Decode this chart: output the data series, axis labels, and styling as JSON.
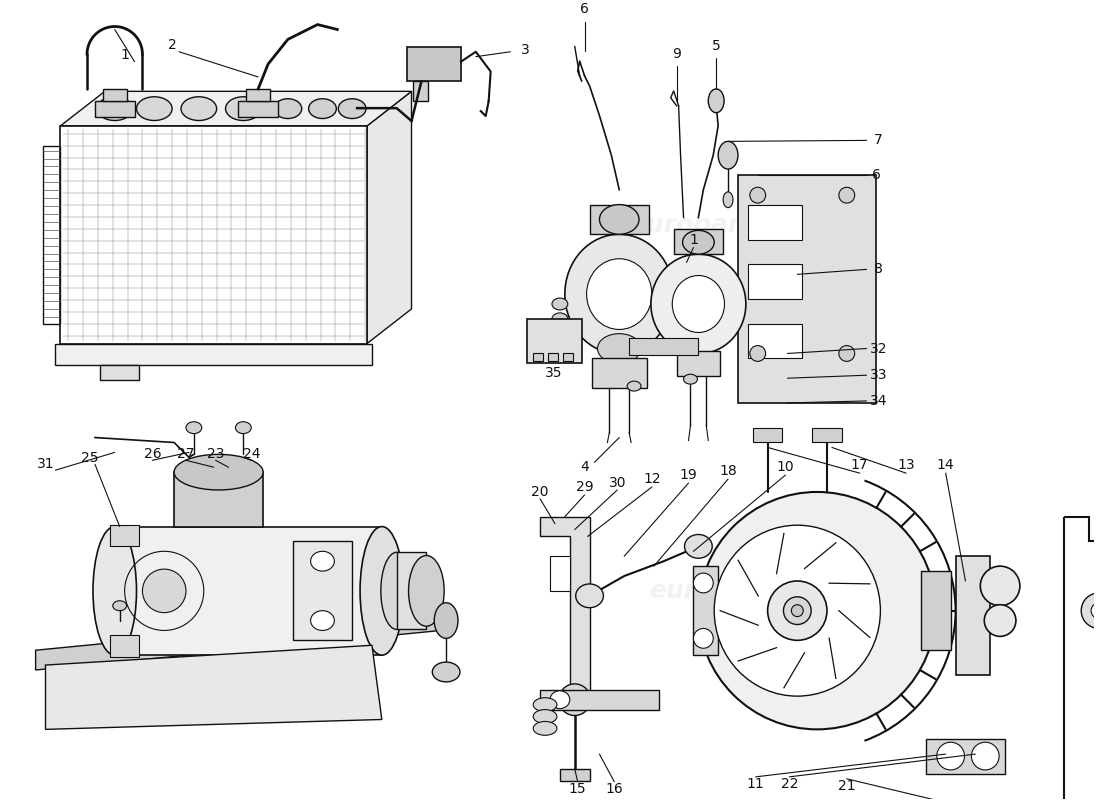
{
  "fig_width": 11.0,
  "fig_height": 8.0,
  "dpi": 100,
  "bg": "#ffffff",
  "lc": "#111111",
  "watermark": "europarts",
  "wm_color": "#cccccc",
  "wm_alpha": 0.25
}
